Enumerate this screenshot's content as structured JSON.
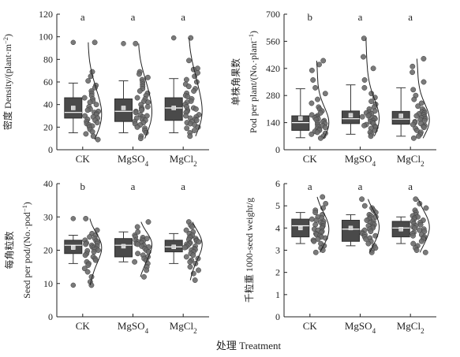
{
  "figure": {
    "shared_xlabel": "处理 Treatment",
    "colors": {
      "box": "#4a4a4a",
      "points": "#6b6b6b",
      "axis": "#222222",
      "mean_marker": "#cfcfcf"
    }
  },
  "chart_data": [
    {
      "type": "box",
      "panel": "top-left",
      "ylabel": "密度 Density/(plant·m⁻²)",
      "ylim": [
        0,
        120
      ],
      "yticks": [
        "0",
        "20",
        "40",
        "60",
        "80",
        "100",
        "120"
      ],
      "categories": [
        "CK",
        "MgSO₄",
        "MgCl₂"
      ],
      "significance_letters": [
        "a",
        "a",
        "a"
      ],
      "series": [
        {
          "category": "CK",
          "whisker_low": 15,
          "q1": 28,
          "median": 33,
          "q3": 46,
          "whisker_high": 59,
          "mean": 37,
          "outliers": [
            95
          ],
          "points": [
            95,
            69,
            65,
            61,
            57,
            55,
            52,
            50,
            48,
            46,
            45,
            43,
            42,
            40,
            38,
            36,
            35,
            34,
            33,
            32,
            31,
            30,
            29,
            28,
            27,
            26,
            25,
            24,
            23,
            22,
            21,
            20,
            18,
            16,
            14,
            12,
            9
          ]
        },
        {
          "category": "MgSO₄",
          "whisker_low": 15,
          "q1": 25,
          "median": 34,
          "q3": 45,
          "whisker_high": 61,
          "mean": 37,
          "outliers": [
            94
          ],
          "points": [
            94,
            69,
            67,
            64,
            62,
            60,
            58,
            56,
            54,
            52,
            50,
            48,
            46,
            45,
            43,
            42,
            40,
            38,
            37,
            36,
            35,
            34,
            33,
            31,
            30,
            29,
            28,
            27,
            26,
            25,
            24,
            23,
            22,
            20,
            19,
            17,
            15,
            12,
            10
          ]
        },
        {
          "category": "MgCl₂",
          "whisker_low": 15,
          "q1": 26,
          "median": 37,
          "q3": 46,
          "whisker_high": 63,
          "mean": 37,
          "outliers": [
            99
          ],
          "points": [
            99,
            79,
            72,
            71,
            68,
            65,
            62,
            60,
            58,
            56,
            54,
            52,
            50,
            48,
            47,
            45,
            43,
            42,
            40,
            38,
            37,
            36,
            35,
            34,
            33,
            31,
            30,
            29,
            28,
            27,
            26,
            25,
            24,
            23,
            22,
            20,
            19,
            17,
            15,
            12
          ]
        }
      ]
    },
    {
      "type": "box",
      "panel": "top-right",
      "ylabel_cn": "单株角果数",
      "ylabel": "Pod per plant/(No.·plant⁻¹)",
      "ylim": [
        0,
        700
      ],
      "yticks": [
        "0",
        "140",
        "280",
        "420",
        "560",
        "700"
      ],
      "categories": [
        "CK",
        "MgSO₄",
        "MgCl₂"
      ],
      "significance_letters": [
        "b",
        "a",
        "a"
      ],
      "series": [
        {
          "category": "CK",
          "whisker_low": 62,
          "q1": 100,
          "median": 140,
          "q3": 175,
          "whisker_high": 315,
          "mean": 162,
          "outliers": [],
          "points": [
            460,
            440,
            410,
            360,
            320,
            290,
            260,
            240,
            220,
            210,
            200,
            190,
            180,
            175,
            170,
            165,
            160,
            155,
            150,
            145,
            140,
            135,
            130,
            125,
            120,
            115,
            110,
            105,
            100,
            95,
            90,
            85,
            80,
            70,
            60
          ]
        },
        {
          "category": "MgSO₄",
          "whisker_low": 80,
          "q1": 135,
          "median": 160,
          "q3": 200,
          "whisker_high": 335,
          "mean": 178,
          "outliers": [],
          "points": [
            575,
            480,
            420,
            360,
            320,
            290,
            270,
            250,
            235,
            220,
            210,
            200,
            195,
            190,
            185,
            180,
            175,
            170,
            165,
            160,
            155,
            150,
            145,
            140,
            135,
            130,
            125,
            120,
            115,
            110,
            100,
            90,
            80,
            70
          ]
        },
        {
          "category": "MgCl₂",
          "whisker_low": 70,
          "q1": 132,
          "median": 158,
          "q3": 198,
          "whisker_high": 320,
          "mean": 175,
          "outliers": [],
          "points": [
            470,
            430,
            400,
            350,
            310,
            280,
            260,
            240,
            225,
            210,
            200,
            195,
            190,
            185,
            180,
            175,
            170,
            165,
            160,
            155,
            150,
            145,
            140,
            135,
            130,
            125,
            120,
            115,
            110,
            100,
            90,
            80,
            70,
            60
          ]
        }
      ]
    },
    {
      "type": "box",
      "panel": "bottom-left",
      "ylabel_cn": "每角粒数",
      "ylabel": "Seed per pod/(No.·pod⁻¹)",
      "ylim": [
        0,
        40
      ],
      "yticks": [
        "0",
        "10",
        "20",
        "30",
        "40"
      ],
      "categories": [
        "CK",
        "MgSO₄",
        "MgCl₂"
      ],
      "significance_letters": [
        "b",
        "a",
        "a"
      ],
      "series": [
        {
          "category": "CK",
          "whisker_low": 16,
          "q1": 19,
          "median": 21.5,
          "q3": 23,
          "whisker_high": 24.5,
          "mean": 20.8,
          "outliers": [
            29.5,
            9.5
          ],
          "points": [
            29.5,
            26,
            25,
            24.5,
            24,
            23.5,
            23,
            22.8,
            22.5,
            22.2,
            22,
            21.8,
            21.5,
            21.2,
            21,
            20.8,
            20.5,
            20.2,
            20,
            19.8,
            19.5,
            19,
            18.5,
            18,
            17.5,
            17,
            16.5,
            16,
            15.5,
            14.5,
            13.5,
            12,
            10.5,
            9.5
          ]
        },
        {
          "category": "MgSO₄",
          "whisker_low": 16.5,
          "q1": 18,
          "median": 21.5,
          "q3": 23.5,
          "whisker_high": 25.5,
          "mean": 21.2,
          "outliers": [],
          "points": [
            28.5,
            27,
            25.5,
            24.5,
            24,
            23.8,
            23.5,
            23.2,
            23,
            22.8,
            22.5,
            22.2,
            22,
            21.8,
            21.5,
            21.2,
            21,
            20.5,
            20,
            19.5,
            19,
            18.5,
            18,
            17.5,
            17,
            16.5,
            16,
            15,
            14,
            12
          ]
        },
        {
          "category": "MgCl₂",
          "whisker_low": 16,
          "q1": 19.5,
          "median": 21,
          "q3": 23,
          "whisker_high": 25,
          "mean": 21,
          "outliers": [],
          "points": [
            28.5,
            27.5,
            27,
            26,
            25.5,
            25,
            24.5,
            24,
            23.8,
            23.5,
            23.2,
            23,
            22.8,
            22.5,
            22.2,
            22,
            21.8,
            21.5,
            21.2,
            21,
            20.8,
            20.5,
            20.2,
            20,
            19.5,
            19,
            18.5,
            18,
            17.5,
            17,
            16.5,
            16,
            15,
            14,
            13,
            11
          ]
        }
      ]
    },
    {
      "type": "box",
      "panel": "bottom-right",
      "ylabel": "千粒重 1000-seed weight/g",
      "ylim": [
        0,
        6
      ],
      "yticks": [
        "0",
        "1",
        "2",
        "3",
        "4",
        "5",
        "6"
      ],
      "categories": [
        "CK",
        "MgSO₄",
        "MgCl₂"
      ],
      "significance_letters": [
        "a",
        "a",
        "a"
      ],
      "series": [
        {
          "category": "CK",
          "whisker_low": 3.3,
          "q1": 3.6,
          "median": 4.1,
          "q3": 4.4,
          "whisker_high": 4.7,
          "mean": 4.0,
          "outliers": [],
          "points": [
            5.4,
            5.1,
            4.9,
            4.8,
            4.7,
            4.6,
            4.5,
            4.45,
            4.4,
            4.35,
            4.3,
            4.25,
            4.2,
            4.15,
            4.1,
            4.05,
            4.0,
            3.95,
            3.9,
            3.85,
            3.8,
            3.75,
            3.7,
            3.65,
            3.6,
            3.55,
            3.5,
            3.45,
            3.4,
            3.3,
            3.2,
            3.1,
            3.0,
            2.9
          ]
        },
        {
          "category": "MgSO₄",
          "whisker_low": 3.2,
          "q1": 3.4,
          "median": 3.95,
          "q3": 4.35,
          "whisker_high": 4.6,
          "mean": 4.0,
          "outliers": [],
          "points": [
            5.3,
            5.0,
            4.9,
            4.8,
            4.7,
            4.6,
            4.55,
            4.5,
            4.45,
            4.4,
            4.35,
            4.3,
            4.25,
            4.2,
            4.15,
            4.1,
            4.05,
            4.0,
            3.95,
            3.9,
            3.85,
            3.8,
            3.75,
            3.7,
            3.65,
            3.6,
            3.55,
            3.5,
            3.4,
            3.3,
            3.2,
            3.1,
            3.0,
            2.9
          ]
        },
        {
          "category": "MgCl₂",
          "whisker_low": 3.3,
          "q1": 3.6,
          "median": 4.0,
          "q3": 4.3,
          "whisker_high": 4.5,
          "mean": 3.95,
          "outliers": [],
          "points": [
            5.3,
            5.1,
            4.9,
            4.8,
            4.7,
            4.6,
            4.55,
            4.5,
            4.45,
            4.4,
            4.35,
            4.3,
            4.25,
            4.2,
            4.15,
            4.1,
            4.05,
            4.0,
            3.95,
            3.9,
            3.85,
            3.8,
            3.75,
            3.7,
            3.65,
            3.6,
            3.55,
            3.5,
            3.4,
            3.3,
            3.2,
            3.1,
            3.0,
            2.9
          ]
        }
      ]
    }
  ]
}
